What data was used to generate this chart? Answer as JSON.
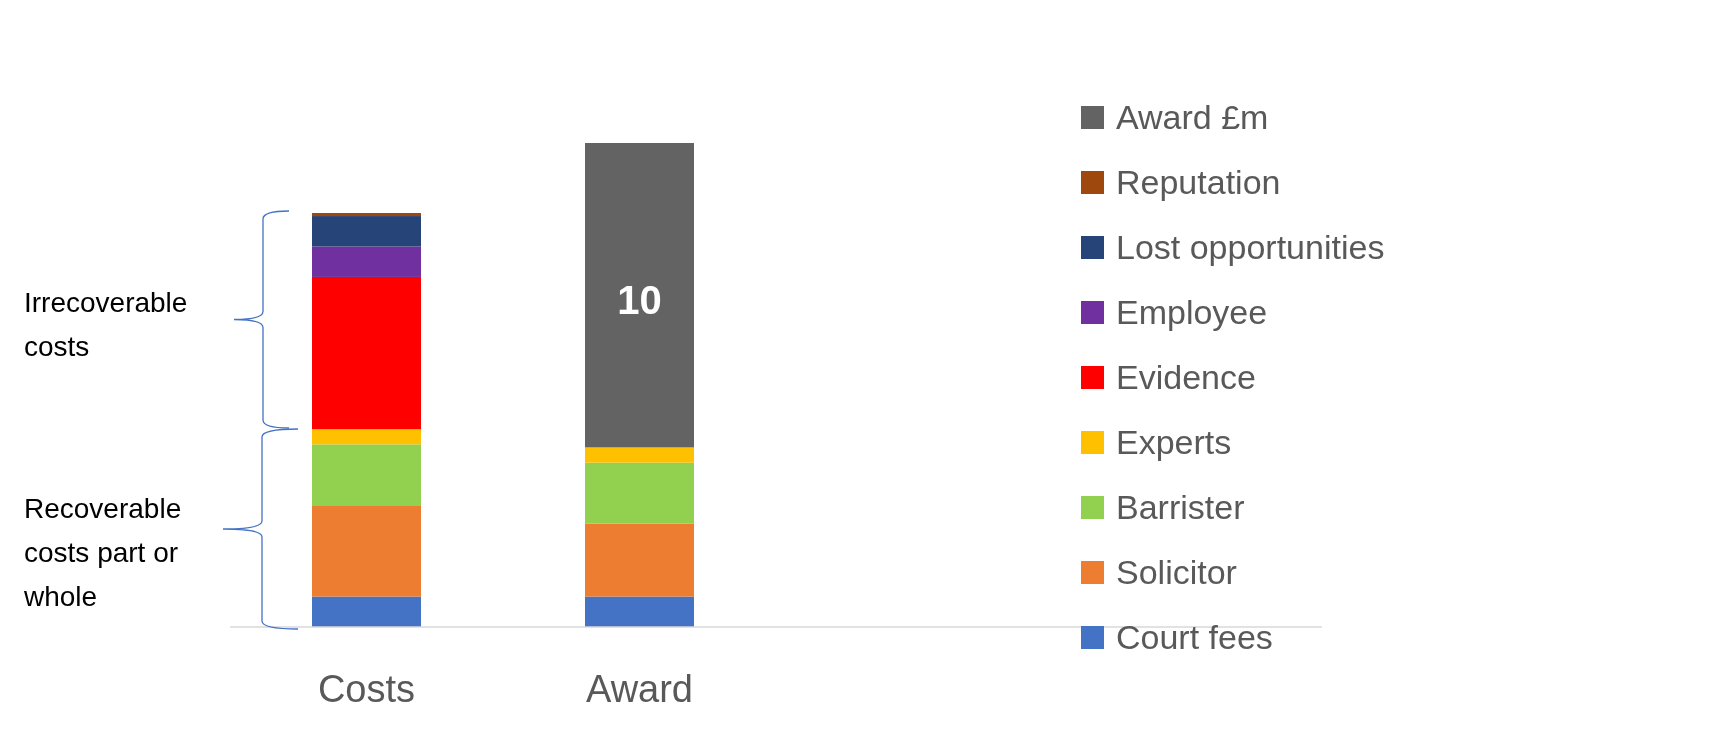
{
  "chart_data": {
    "type": "bar",
    "stacked": true,
    "categories": [
      "Costs",
      "Award"
    ],
    "series": [
      {
        "name": "Court fees",
        "color": "#4472c4",
        "values": [
          1,
          1
        ]
      },
      {
        "name": "Solicitor",
        "color": "#ed7d31",
        "values": [
          3,
          2.4
        ]
      },
      {
        "name": "Barrister",
        "color": "#92d050",
        "values": [
          2,
          2
        ]
      },
      {
        "name": "Experts",
        "color": "#ffc000",
        "values": [
          0.5,
          0.5
        ]
      },
      {
        "name": "Evidence",
        "color": "#ff0000",
        "values": [
          5,
          null
        ]
      },
      {
        "name": "Employee",
        "color": "#7030a0",
        "values": [
          1,
          null
        ]
      },
      {
        "name": "Lost opportunities",
        "color": "#264478",
        "values": [
          1,
          null
        ]
      },
      {
        "name": "Reputation",
        "color": "#9e480e",
        "values": [
          0.1,
          null
        ]
      },
      {
        "name": "Award £m",
        "color": "#636363",
        "values": [
          null,
          10
        ],
        "value_labels": [
          null,
          "10"
        ]
      }
    ],
    "legend": "right",
    "annotations": [
      "Irrecoverable costs",
      "Recoverable costs part or whole"
    ]
  }
}
